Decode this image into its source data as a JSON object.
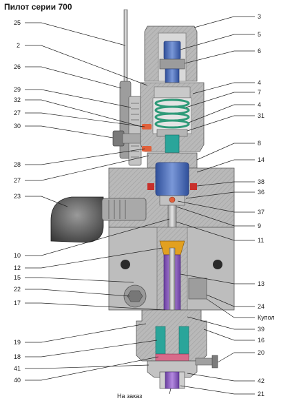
{
  "title": "Пилот серии 700",
  "labels": {
    "l2": "2",
    "l3": "3",
    "l4a": "4",
    "l4b": "4",
    "l5": "5",
    "l6": "6",
    "l7": "7",
    "l8": "8",
    "l9": "9",
    "l10": "10",
    "l11": "11",
    "l12": "12",
    "l13": "13",
    "l14": "14",
    "l15": "15",
    "l16": "16",
    "l17": "17",
    "l18": "18",
    "l19": "19",
    "l20": "20",
    "l21": "21",
    "l22": "22",
    "l23": "23",
    "l24": "24",
    "l25": "25",
    "l26": "26",
    "l27a": "27",
    "l27b": "27",
    "l28": "28",
    "l29": "29",
    "l30": "30",
    "l31": "31",
    "l32": "32",
    "l36": "36",
    "l37": "37",
    "l38": "38",
    "l39": "39",
    "l40": "40",
    "l41": "41",
    "l42": "42",
    "kupol": "Купол",
    "na_zakaz": "На заказ"
  },
  "colors": {
    "body_grey": "#b9b9b9",
    "dark_grey": "#8a8a8a",
    "blue": "#3f63b3",
    "green": "#2e9a78",
    "teal": "#2aa59a",
    "purple": "#8a5cc2",
    "orange": "#e2a020",
    "pink": "#d86a8a",
    "red": "#c8302b"
  }
}
